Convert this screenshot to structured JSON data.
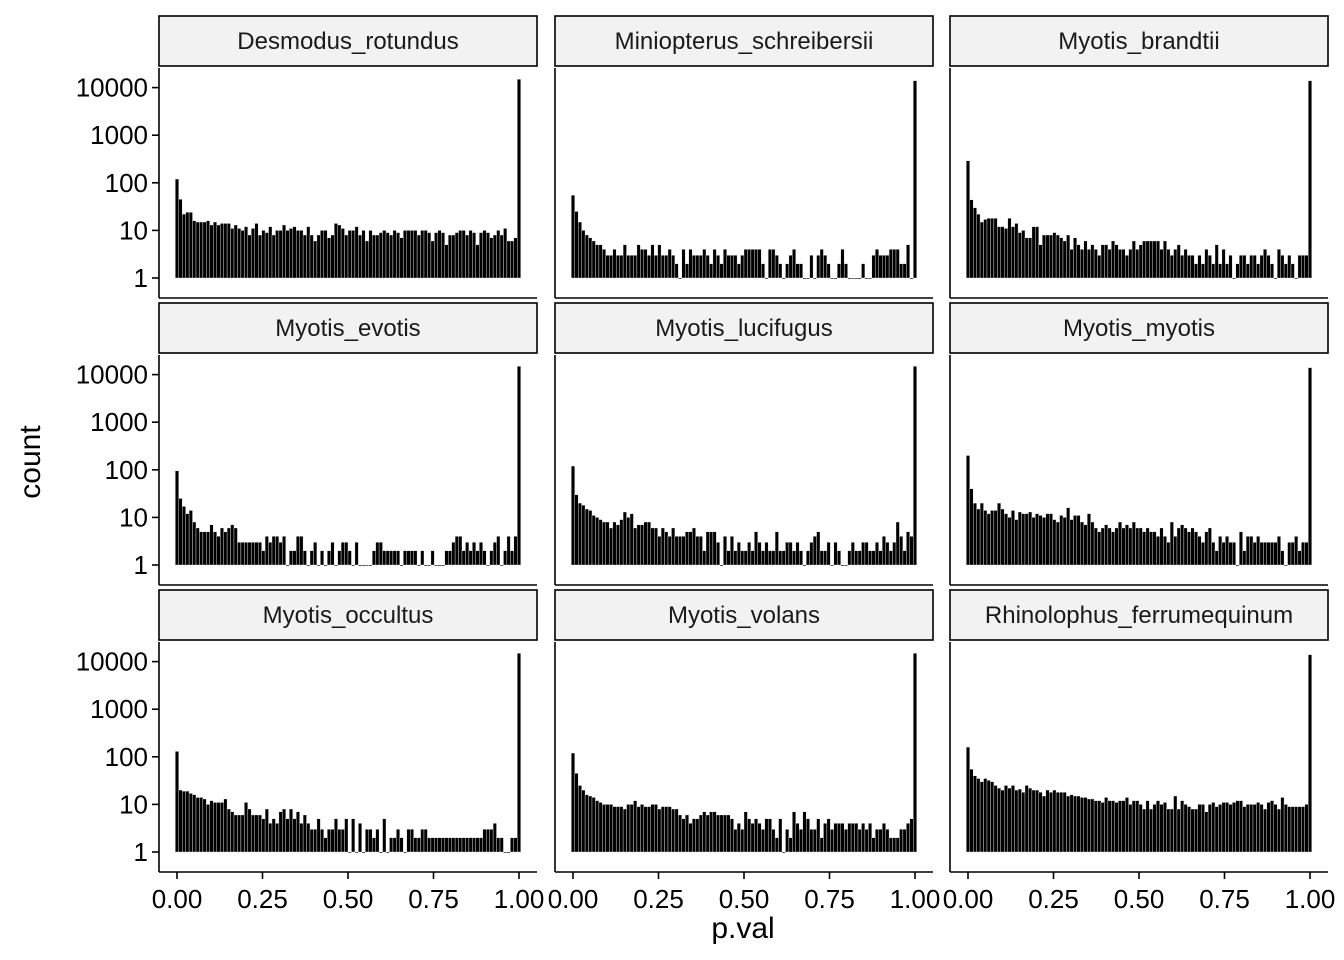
{
  "chart_data": {
    "type": "bar",
    "subtype": "histogram-facets",
    "xlabel": "p.val",
    "ylabel": "count",
    "y_scale": "log10",
    "ylim": [
      1,
      10000
    ],
    "xlim": [
      0,
      1
    ],
    "x_ticks": [
      "0.00",
      "0.25",
      "0.50",
      "0.75",
      "1.00"
    ],
    "x_tick_values": [
      0,
      0.25,
      0.5,
      0.75,
      1
    ],
    "y_ticks": [
      "1",
      "10",
      "100",
      "1000",
      "10000"
    ],
    "y_tick_values": [
      1,
      10,
      100,
      1000,
      10000
    ],
    "bin_width": 0.01,
    "grid": false,
    "bar_fill": "#000000",
    "bar_outline": "#000000",
    "strip_fill": "#f2f2f2",
    "panels": [
      {
        "name": "Desmodus_rotundus",
        "counts": [
          120,
          45,
          22,
          24,
          24,
          16,
          15,
          15,
          15,
          16,
          13,
          15,
          13,
          14,
          14,
          14,
          11,
          13,
          11,
          10,
          12,
          8,
          11,
          14,
          8,
          10,
          9,
          12,
          8,
          10,
          10,
          13,
          10,
          11,
          12,
          10,
          10,
          8,
          12,
          8,
          6,
          8,
          10,
          10,
          7,
          8,
          14,
          13,
          11,
          8,
          10,
          10,
          12,
          8,
          10,
          6,
          10,
          8,
          8,
          9,
          10,
          9,
          8,
          10,
          9,
          7,
          10,
          10,
          10,
          10,
          8,
          10,
          10,
          9,
          6,
          9,
          10,
          9,
          5,
          8,
          8,
          9,
          10,
          10,
          8,
          10,
          9,
          5,
          9,
          10,
          9,
          7,
          8,
          10,
          8,
          11,
          6,
          6,
          7,
          15000
        ]
      },
      {
        "name": "Miniopterus_schreibersii",
        "counts": [
          55,
          25,
          15,
          10,
          8,
          7,
          6,
          5,
          5,
          4,
          3,
          3,
          4,
          3,
          3,
          5,
          3,
          3,
          3,
          5,
          4,
          4,
          3,
          5,
          3,
          5,
          3,
          3,
          4,
          3,
          2,
          1,
          4,
          2,
          4,
          3,
          3,
          3,
          4,
          3,
          2,
          4,
          3,
          2,
          4,
          3,
          3,
          3,
          2,
          3,
          4,
          4,
          4,
          4,
          4,
          2,
          1,
          4,
          4,
          3,
          2,
          1,
          2,
          3,
          4,
          2,
          2,
          1,
          1,
          3,
          1,
          3,
          4,
          3,
          2,
          1,
          1,
          2,
          4,
          2,
          1,
          1,
          1,
          1,
          2,
          1,
          1,
          3,
          4,
          3,
          3,
          3,
          4,
          4,
          4,
          2,
          2,
          5,
          1,
          14000
        ]
      },
      {
        "name": "Myotis_brandtii",
        "counts": [
          290,
          44,
          30,
          22,
          15,
          17,
          18,
          18,
          18,
          12,
          12,
          11,
          18,
          12,
          14,
          9,
          10,
          7,
          7,
          12,
          12,
          5,
          8,
          8,
          8,
          9,
          8,
          7,
          6,
          8,
          4,
          7,
          5,
          4,
          6,
          4,
          5,
          4,
          3,
          5,
          5,
          4,
          6,
          5,
          4,
          4,
          3,
          4,
          6,
          4,
          5,
          6,
          6,
          6,
          6,
          6,
          4,
          6,
          4,
          3,
          4,
          5,
          3,
          4,
          3,
          3,
          2,
          3,
          2,
          4,
          3,
          2,
          5,
          2,
          4,
          2,
          3,
          1,
          2,
          3,
          3,
          2,
          3,
          3,
          2,
          3,
          4,
          3,
          2,
          1,
          4,
          3,
          2,
          3,
          2,
          1,
          3,
          3,
          3,
          14000
        ]
      },
      {
        "name": "Myotis_evotis",
        "counts": [
          95,
          25,
          17,
          12,
          14,
          8,
          6,
          5,
          5,
          5,
          7,
          5,
          4,
          6,
          5,
          6,
          7,
          6,
          3,
          3,
          3,
          3,
          3,
          3,
          3,
          2,
          4,
          3,
          4,
          4,
          3,
          4,
          1,
          2,
          2,
          4,
          4,
          2,
          1,
          2,
          3,
          1,
          2,
          1,
          2,
          3,
          1,
          2,
          3,
          3,
          2,
          1,
          3,
          1,
          1,
          1,
          1,
          2,
          3,
          3,
          2,
          2,
          2,
          2,
          2,
          1,
          2,
          2,
          2,
          2,
          1,
          2,
          1,
          1,
          2,
          1,
          1,
          1,
          2,
          2,
          3,
          4,
          4,
          2,
          3,
          2,
          3,
          2,
          3,
          2,
          1,
          2,
          3,
          4,
          1,
          2,
          4,
          2,
          4,
          15000
        ]
      },
      {
        "name": "Myotis_lucifugus",
        "counts": [
          120,
          30,
          20,
          18,
          15,
          14,
          11,
          10,
          9,
          8,
          8,
          6,
          8,
          7,
          9,
          13,
          10,
          12,
          6,
          7,
          7,
          8,
          8,
          6,
          6,
          4,
          6,
          5,
          4,
          6,
          4,
          4,
          4,
          5,
          5,
          6,
          4,
          4,
          2,
          5,
          5,
          5,
          3,
          1,
          4,
          2,
          4,
          2,
          3,
          2,
          2,
          3,
          2,
          5,
          3,
          2,
          3,
          2,
          2,
          5,
          2,
          2,
          3,
          3,
          2,
          3,
          2,
          1,
          2,
          3,
          4,
          5,
          2,
          2,
          3,
          1,
          3,
          2,
          1,
          1,
          2,
          3,
          2,
          2,
          3,
          3,
          2,
          2,
          3,
          2,
          4,
          3,
          2,
          3,
          8,
          4,
          2,
          5,
          4,
          15000
        ]
      },
      {
        "name": "Myotis_myotis",
        "counts": [
          200,
          40,
          20,
          15,
          20,
          14,
          12,
          14,
          14,
          20,
          15,
          12,
          10,
          14,
          9,
          13,
          12,
          12,
          13,
          10,
          12,
          11,
          10,
          12,
          12,
          9,
          8,
          11,
          10,
          16,
          9,
          11,
          11,
          8,
          7,
          12,
          8,
          6,
          5,
          6,
          7,
          6,
          5,
          6,
          8,
          6,
          7,
          6,
          8,
          6,
          6,
          5,
          6,
          5,
          5,
          4,
          6,
          4,
          3,
          8,
          4,
          6,
          7,
          6,
          5,
          6,
          5,
          4,
          3,
          5,
          6,
          3,
          2,
          4,
          3,
          4,
          3,
          3,
          1,
          5,
          2,
          4,
          4,
          3,
          4,
          3,
          3,
          3,
          3,
          3,
          4,
          2,
          1,
          3,
          3,
          4,
          2,
          3,
          3,
          14000
        ]
      },
      {
        "name": "Myotis_occultus",
        "counts": [
          130,
          20,
          19,
          19,
          17,
          16,
          14,
          14,
          13,
          10,
          12,
          11,
          11,
          11,
          13,
          8,
          7,
          6,
          6,
          6,
          11,
          8,
          6,
          6,
          6,
          5,
          8,
          4,
          5,
          4,
          7,
          8,
          5,
          8,
          5,
          7,
          4,
          6,
          4,
          3,
          3,
          5,
          3,
          2,
          3,
          3,
          5,
          3,
          3,
          5,
          1,
          5,
          1,
          4,
          1,
          3,
          3,
          2,
          3,
          1,
          5,
          1,
          2,
          2,
          3,
          2,
          1,
          3,
          3,
          2,
          2,
          3,
          3,
          2,
          2,
          2,
          2,
          2,
          2,
          2,
          2,
          2,
          2,
          2,
          2,
          2,
          2,
          2,
          2,
          3,
          3,
          3,
          4,
          2,
          2,
          1,
          1,
          2,
          2,
          15000
        ]
      },
      {
        "name": "Myotis_volans",
        "counts": [
          120,
          45,
          25,
          20,
          16,
          15,
          14,
          12,
          11,
          10,
          10,
          10,
          9,
          9,
          9,
          8,
          10,
          10,
          12,
          9,
          10,
          9,
          9,
          10,
          10,
          8,
          9,
          9,
          9,
          8,
          8,
          6,
          5,
          6,
          4,
          5,
          5,
          6,
          7,
          6,
          7,
          7,
          6,
          6,
          6,
          6,
          5,
          3,
          4,
          3,
          7,
          5,
          4,
          5,
          4,
          3,
          5,
          5,
          3,
          2,
          5,
          1,
          3,
          2,
          7,
          4,
          3,
          7,
          5,
          3,
          3,
          5,
          2,
          4,
          5,
          3,
          4,
          4,
          4,
          3,
          4,
          4,
          4,
          3,
          4,
          3,
          4,
          2,
          3,
          3,
          4,
          3,
          2,
          2,
          2,
          3,
          3,
          4,
          5,
          15000
        ]
      },
      {
        "name": "Rhinolophus_ferrumequinum",
        "counts": [
          160,
          55,
          40,
          35,
          30,
          35,
          32,
          30,
          25,
          22,
          20,
          25,
          22,
          25,
          20,
          21,
          18,
          25,
          22,
          20,
          20,
          18,
          15,
          20,
          18,
          20,
          18,
          18,
          18,
          15,
          16,
          15,
          15,
          14,
          14,
          13,
          13,
          12,
          12,
          11,
          14,
          12,
          12,
          11,
          12,
          12,
          14,
          10,
          12,
          12,
          10,
          8,
          12,
          8,
          10,
          12,
          10,
          11,
          8,
          8,
          15,
          8,
          12,
          10,
          9,
          8,
          8,
          10,
          10,
          7,
          10,
          11,
          9,
          10,
          11,
          11,
          10,
          11,
          12,
          12,
          9,
          10,
          10,
          10,
          11,
          10,
          8,
          11,
          12,
          10,
          8,
          14,
          10,
          9,
          9,
          9,
          9,
          9,
          10,
          14000
        ]
      }
    ]
  }
}
